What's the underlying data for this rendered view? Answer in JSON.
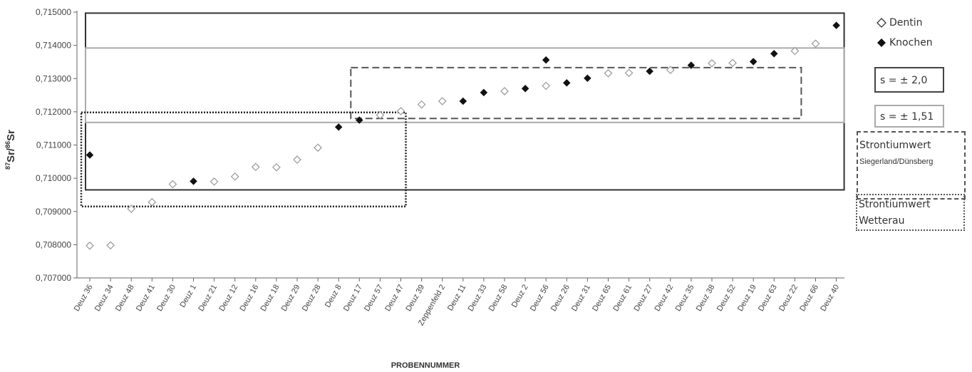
{
  "chart_data": {
    "type": "scatter",
    "title": "",
    "ylabel_main": "Sr/",
    "ylabel_sup1": "87",
    "ylabel_sup2": "86",
    "ylabel_tail": "Sr",
    "xlabel": "PROBENNUMMER",
    "ylim": [
      0.707,
      0.715
    ],
    "ytick_values": [
      0.707,
      0.708,
      0.709,
      0.71,
      0.711,
      0.712,
      0.713,
      0.714,
      0.715
    ],
    "ytick_labels": [
      "0,707000",
      "0,708000",
      "0,709000",
      "0,710000",
      "0,711000",
      "0,712000",
      "0,713000",
      "0,714000",
      "0,715000"
    ],
    "categories": [
      "Deuz 36",
      "Deuz 34",
      "Deuz 48",
      "Deuz 41",
      "Deuz 30",
      "Deuz 1",
      "Deuz 21",
      "Deuz 12",
      "Deuz 16",
      "Deuz 18",
      "Deuz 29",
      "Deuz 28",
      "Deuz 8",
      "Deuz 17",
      "Deuz 57",
      "Deuz 47",
      "Deuz 39",
      "Zeppenfeld 2",
      "Deuz 11",
      "Deuz 33",
      "Deuz 58",
      "Deuz 2",
      "Deuz 56",
      "Deuz 26",
      "Deuz 31",
      "Deuz 65",
      "Deuz 61",
      "Deuz 27",
      "Deuz 42",
      "Deuz 35",
      "Deuz 38",
      "Deuz 52",
      "Deuz 19",
      "Deuz 63",
      "Deuz 22",
      "Deuz 66",
      "Deuz 40"
    ],
    "series": [
      {
        "name": "Dentin",
        "marker": "open-diamond",
        "color": "#999999",
        "points": [
          {
            "x": "Deuz 36",
            "y": 0.70797
          },
          {
            "x": "Deuz 34",
            "y": 0.70798
          },
          {
            "x": "Deuz 48",
            "y": 0.70908
          },
          {
            "x": "Deuz 41",
            "y": 0.70928
          },
          {
            "x": "Deuz 30",
            "y": 0.70982
          },
          {
            "x": "Deuz 21",
            "y": 0.7099
          },
          {
            "x": "Deuz 12",
            "y": 0.71005
          },
          {
            "x": "Deuz 16",
            "y": 0.71034
          },
          {
            "x": "Deuz 18",
            "y": 0.71033
          },
          {
            "x": "Deuz 29",
            "y": 0.71056
          },
          {
            "x": "Deuz 28",
            "y": 0.71092
          },
          {
            "x": "Deuz 57",
            "y": 0.7119
          },
          {
            "x": "Deuz 47",
            "y": 0.71202
          },
          {
            "x": "Deuz 39",
            "y": 0.71222
          },
          {
            "x": "Zeppenfeld 2",
            "y": 0.71232
          },
          {
            "x": "Deuz 58",
            "y": 0.71262
          },
          {
            "x": "Deuz 56",
            "y": 0.71278
          },
          {
            "x": "Deuz 65",
            "y": 0.71316
          },
          {
            "x": "Deuz 61",
            "y": 0.71317
          },
          {
            "x": "Deuz 42",
            "y": 0.71326
          },
          {
            "x": "Deuz 38",
            "y": 0.71346
          },
          {
            "x": "Deuz 52",
            "y": 0.71347
          },
          {
            "x": "Deuz 22",
            "y": 0.71383
          },
          {
            "x": "Deuz 66",
            "y": 0.71405
          }
        ]
      },
      {
        "name": "Knochen",
        "marker": "filled-diamond",
        "color": "#111111",
        "points": [
          {
            "x": "Deuz 36",
            "y": 0.7107
          },
          {
            "x": "Deuz 1",
            "y": 0.70991
          },
          {
            "x": "Deuz 8",
            "y": 0.71154
          },
          {
            "x": "Deuz 17",
            "y": 0.71175
          },
          {
            "x": "Deuz 11",
            "y": 0.71232
          },
          {
            "x": "Deuz 33",
            "y": 0.71258
          },
          {
            "x": "Deuz 2",
            "y": 0.7127
          },
          {
            "x": "Deuz 56",
            "y": 0.71356
          },
          {
            "x": "Deuz 26",
            "y": 0.71287
          },
          {
            "x": "Deuz 31",
            "y": 0.71301
          },
          {
            "x": "Deuz 27",
            "y": 0.71322
          },
          {
            "x": "Deuz 35",
            "y": 0.7134
          },
          {
            "x": "Deuz 19",
            "y": 0.71351
          },
          {
            "x": "Deuz 63",
            "y": 0.71375
          },
          {
            "x": "Deuz 40",
            "y": 0.7146
          }
        ]
      }
    ],
    "range_boxes": [
      {
        "name": "s = ± 2,0",
        "style": "solid-dark",
        "x_from": "Deuz 36",
        "x_to": "Deuz 40",
        "y_from": 0.70965,
        "y_to": 0.71497
      },
      {
        "name": "s = ± 1,51",
        "style": "solid-light",
        "x_from": "Deuz 36",
        "x_to": "Deuz 40",
        "y_from": 0.71168,
        "y_to": 0.71392
      },
      {
        "name": "Strontiumwert Siegerland/Dünsberg",
        "style": "dashed",
        "x_from": "Deuz 17",
        "x_to": "Deuz 22",
        "y_from": 0.7118,
        "y_to": 0.71333
      },
      {
        "name": "Strontiumwert Wetterau",
        "style": "dotted",
        "x_from": "Deuz 36",
        "x_to": "Deuz 47",
        "y_from": 0.70915,
        "y_to": 0.71198
      }
    ],
    "legend_position": "right"
  },
  "legend": {
    "dentin_label": "Dentin",
    "knochen_label": "Knochen",
    "s20_label": "s = ± 2,0",
    "s151_label": "s = ± 1,51",
    "siegerland_line1": "Strontiumwert",
    "siegerland_line2": "Siegerland/Dünsberg",
    "wetterau_line1": "Strontiumwert",
    "wetterau_line2": "Wetterau"
  }
}
